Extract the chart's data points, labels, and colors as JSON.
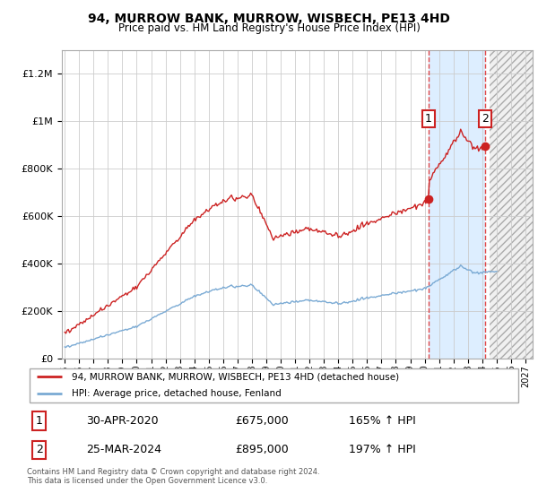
{
  "title": "94, MURROW BANK, MURROW, WISBECH, PE13 4HD",
  "subtitle": "Price paid vs. HM Land Registry's House Price Index (HPI)",
  "legend_line1": "94, MURROW BANK, MURROW, WISBECH, PE13 4HD (detached house)",
  "legend_line2": "HPI: Average price, detached house, Fenland",
  "sale1_label": "1",
  "sale1_date": "30-APR-2020",
  "sale1_price": "£675,000",
  "sale1_hpi": "165% ↑ HPI",
  "sale2_label": "2",
  "sale2_date": "25-MAR-2024",
  "sale2_price": "£895,000",
  "sale2_hpi": "197% ↑ HPI",
  "footnote": "Contains HM Land Registry data © Crown copyright and database right 2024.\nThis data is licensed under the Open Government Licence v3.0.",
  "hpi_color": "#7aaad4",
  "price_color": "#cc2222",
  "sale1_x_year": 2020.25,
  "sale2_x_year": 2024.2,
  "background_color": "#ffffff",
  "plot_bg_color": "#ffffff",
  "between_shade_color": "#ddeeff",
  "hatch_bg_color": "#e0e0e0",
  "ylim": [
    0,
    1300000
  ],
  "xlim_start": 1994.8,
  "xlim_end": 2027.5,
  "future_start": 2024.5
}
